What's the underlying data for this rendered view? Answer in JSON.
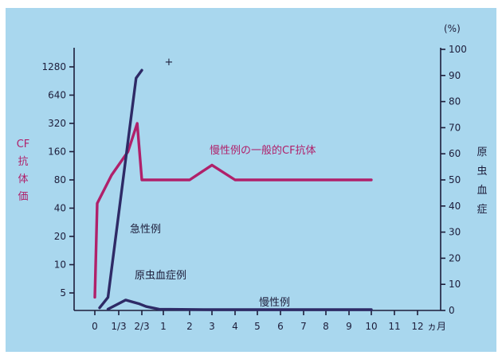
{
  "chart_data": {
    "type": "line",
    "x_ticks": [
      "0",
      "1/3",
      "2/3",
      "1",
      "2",
      "3",
      "4",
      "5",
      "6",
      "7",
      "8",
      "9",
      "10",
      "11",
      "12"
    ],
    "x_unit": "ヵ月",
    "left_axis": {
      "label": [
        "CF",
        "抗",
        "体",
        "価"
      ],
      "ticks": [
        5,
        10,
        20,
        40,
        80,
        160,
        320,
        640,
        1280
      ],
      "scale": "log2"
    },
    "right_axis": {
      "label": [
        "原",
        "虫",
        "血",
        "症"
      ],
      "unit": "(%)",
      "ticks": [
        0,
        10,
        20,
        30,
        40,
        50,
        60,
        70,
        80,
        90,
        100
      ],
      "range": [
        0,
        100
      ]
    },
    "series": [
      {
        "name": "慢性例の一般的CF抗体",
        "axis": "left",
        "color": "#b0206a",
        "points": [
          [
            0,
            4.5
          ],
          [
            0.1,
            45
          ],
          [
            0.7,
            90
          ],
          [
            1.4,
            160
          ],
          [
            1.8,
            320
          ],
          [
            2.0,
            80
          ],
          [
            4.0,
            80
          ],
          [
            5.0,
            115
          ],
          [
            6.0,
            80
          ],
          [
            12.0,
            80
          ]
        ]
      },
      {
        "name": "急性例",
        "axis": "right",
        "color": "#2e2a66",
        "points": [
          [
            0.2,
            1
          ],
          [
            0.55,
            5
          ],
          [
            1.75,
            89
          ],
          [
            2.0,
            92
          ]
        ]
      },
      {
        "name": "慢性例",
        "axis": "right",
        "color": "#2e2a66",
        "points": [
          [
            0.55,
            0.5
          ],
          [
            1.3,
            4
          ],
          [
            1.9,
            2.5
          ],
          [
            2.2,
            1.5
          ],
          [
            2.8,
            0.5
          ],
          [
            5.0,
            0.3
          ],
          [
            12.0,
            0.3
          ]
        ]
      }
    ],
    "annotations": {
      "plus": "+",
      "series_labels": [
        "慢性例の一般的CF抗体",
        "急性例",
        "慢性例"
      ],
      "curve_note": "原虫血症例"
    }
  }
}
